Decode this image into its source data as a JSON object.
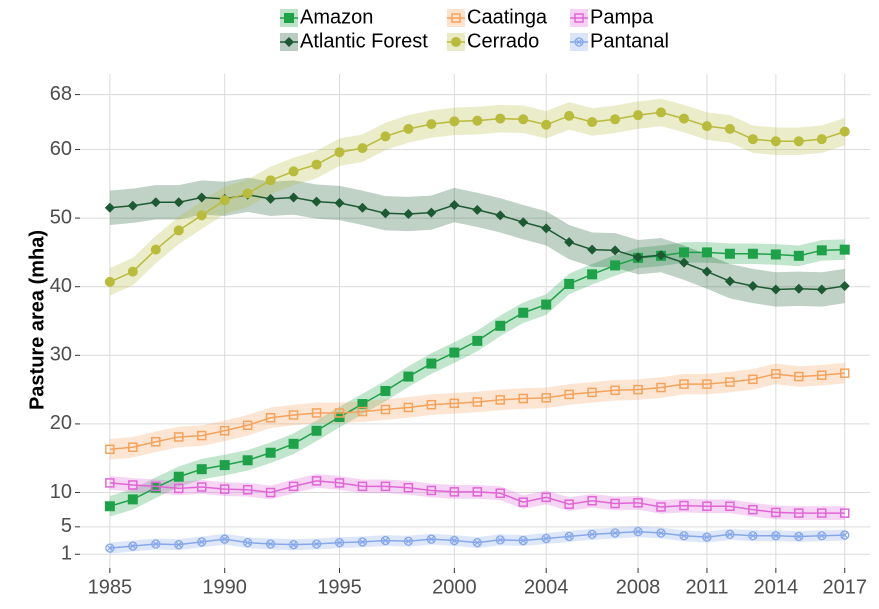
{
  "chart_data": {
    "type": "line",
    "y_label": "Pasture area (mha)",
    "x": [
      1985,
      1986,
      1987,
      1988,
      1989,
      1990,
      1991,
      1992,
      1993,
      1994,
      1995,
      1996,
      1997,
      1998,
      1999,
      2000,
      2001,
      2002,
      2003,
      2004,
      2005,
      2006,
      2007,
      2008,
      2009,
      2010,
      2011,
      2012,
      2013,
      2014,
      2015,
      2016,
      2017
    ],
    "xlim": [
      1983.7,
      2018.1
    ],
    "xticks": [
      1985,
      1990,
      1995,
      2000,
      2004,
      2008,
      2011,
      2014,
      2017
    ],
    "ylim": [
      -1,
      71
    ],
    "yticks": [
      1,
      5,
      10,
      20,
      30,
      40,
      50,
      60,
      68
    ],
    "grid": true,
    "legend": "top",
    "series": [
      {
        "name": "Amazon",
        "color": "#1fa14a",
        "marker": "square-filled",
        "ribbon": 1.5,
        "values": [
          8.0,
          9,
          10.7,
          12.3,
          13.4,
          14,
          14.7,
          15.8,
          17.1,
          19,
          21,
          22.9,
          24.8,
          26.9,
          28.8,
          30.4,
          32.1,
          34.3,
          36.2,
          37.4,
          40.4,
          41.8,
          43.1,
          44.2,
          44.5,
          45,
          45,
          44.8,
          44.8,
          44.7,
          44.5,
          45.3,
          45.4
        ]
      },
      {
        "name": "Atlantic Forest",
        "color": "#1d5a34",
        "marker": "diamond",
        "ribbon": 2.5,
        "values": [
          51.5,
          51.8,
          52.3,
          52.3,
          53,
          52.8,
          53.4,
          52.8,
          53,
          52.4,
          52.2,
          51.5,
          50.7,
          50.6,
          50.8,
          51.9,
          51.2,
          50.4,
          49.4,
          48.5,
          46.5,
          45.4,
          45.3,
          44.3,
          44.6,
          43.5,
          42.2,
          40.8,
          40.1,
          39.6,
          39.7,
          39.6,
          40.1
        ]
      },
      {
        "name": "Caatinga",
        "color": "#f5a35c",
        "marker": "square-open",
        "ribbon": 1.5,
        "values": [
          16.3,
          16.6,
          17.4,
          18.1,
          18.3,
          19,
          19.8,
          20.9,
          21.3,
          21.6,
          21.6,
          21.8,
          22.1,
          22.4,
          22.8,
          23,
          23.2,
          23.5,
          23.7,
          23.8,
          24.3,
          24.6,
          24.9,
          25,
          25.3,
          25.8,
          25.8,
          26.1,
          26.5,
          27.3,
          26.9,
          27.1,
          27.4
        ]
      },
      {
        "name": "Cerrado",
        "color": "#b8bb3c",
        "marker": "circle",
        "ribbon": 2,
        "values": [
          40.7,
          42.2,
          45.4,
          48.2,
          50.4,
          52.6,
          53.6,
          55.5,
          56.8,
          57.8,
          59.6,
          60.2,
          61.9,
          63,
          63.7,
          64.1,
          64.2,
          64.5,
          64.4,
          63.6,
          64.9,
          64,
          64.4,
          65,
          65.4,
          64.5,
          63.4,
          63,
          61.5,
          61.2,
          61.2,
          61.5,
          62.6
        ]
      },
      {
        "name": "Pampa",
        "color": "#e066d6",
        "marker": "square-open",
        "ribbon": 1,
        "values": [
          11.4,
          11.1,
          10.9,
          10.6,
          10.8,
          10.5,
          10.4,
          10.0,
          10.9,
          11.7,
          11.4,
          10.9,
          10.9,
          10.7,
          10.3,
          10.1,
          10.1,
          9.9,
          8.6,
          9.3,
          8.3,
          8.8,
          8.4,
          8.5,
          7.9,
          8.1,
          8.0,
          8.0,
          7.5,
          7.1,
          7.0,
          7.0,
          7.0
        ]
      },
      {
        "name": "Pantanal",
        "color": "#86a8ea",
        "marker": "circle-x",
        "ribbon": 0.8,
        "values": [
          1.9,
          2.2,
          2.5,
          2.4,
          2.8,
          3.2,
          2.7,
          2.5,
          2.4,
          2.5,
          2.7,
          2.8,
          3.0,
          2.9,
          3.2,
          3.0,
          2.7,
          3.1,
          3.0,
          3.3,
          3.6,
          3.9,
          4.1,
          4.3,
          4.1,
          3.7,
          3.5,
          3.9,
          3.7,
          3.7,
          3.6,
          3.7,
          3.8
        ]
      }
    ]
  }
}
